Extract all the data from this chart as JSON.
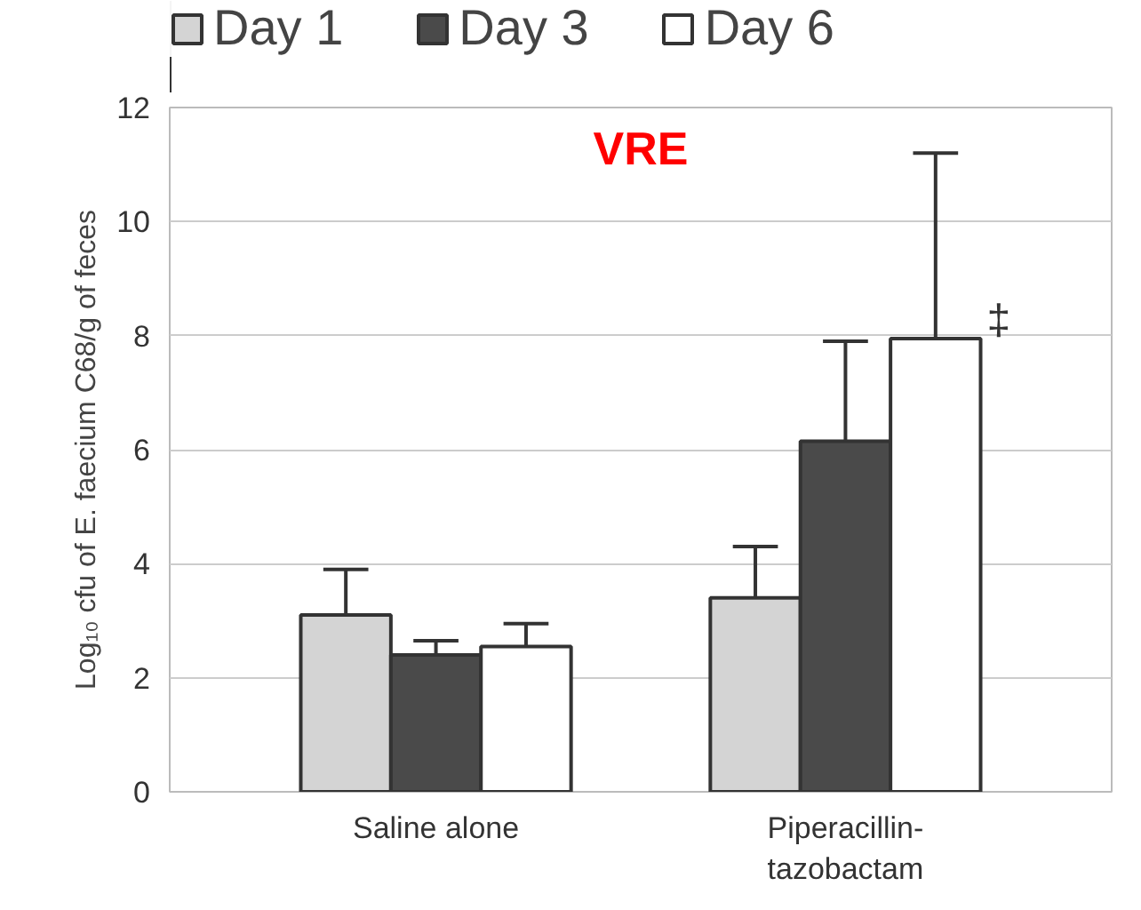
{
  "chart_data": {
    "type": "bar",
    "title": "VRE",
    "ylabel": "Log₁₀ cfu of E. faecium C68/g of feces",
    "categories": [
      "Saline alone",
      "Piperacillin-tazobactam"
    ],
    "series": [
      {
        "name": "Day 1",
        "color": "#d4d4d4",
        "values": [
          3.1,
          3.4
        ],
        "errors": [
          [
            3.1,
            3.9
          ],
          [
            3.4,
            4.3
          ]
        ]
      },
      {
        "name": "Day 3",
        "color": "#4a4a4a",
        "values": [
          2.4,
          6.15
        ],
        "errors": [
          [
            2.4,
            2.65
          ],
          [
            6.15,
            7.9
          ]
        ]
      },
      {
        "name": "Day 6",
        "color": "#ffffff",
        "values": [
          2.55,
          7.95
        ],
        "errors": [
          [
            2.55,
            2.95
          ],
          [
            7.95,
            11.2
          ]
        ]
      }
    ],
    "ylim": [
      0,
      12
    ],
    "yticks": [
      0,
      2,
      4,
      6,
      8,
      10,
      12
    ],
    "grid": "y",
    "legend": "top",
    "annotations": [
      "‡"
    ]
  }
}
